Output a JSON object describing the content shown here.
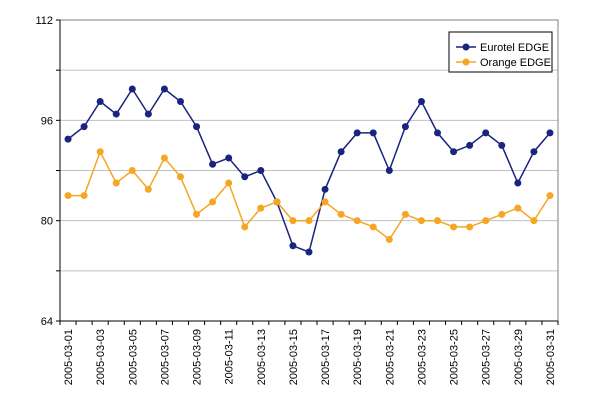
{
  "chart_data": {
    "type": "line",
    "title": "",
    "xlabel": "",
    "ylabel": "",
    "ylim": [
      64,
      112
    ],
    "yticks": [
      64,
      80,
      96,
      112
    ],
    "grid": true,
    "legend_position": "top-right",
    "x": [
      "2005-03-01",
      "2005-03-02",
      "2005-03-03",
      "2005-03-04",
      "2005-03-05",
      "2005-03-06",
      "2005-03-07",
      "2005-03-08",
      "2005-03-09",
      "2005-03-10",
      "2005-03-11",
      "2005-03-12",
      "2005-03-13",
      "2005-03-14",
      "2005-03-15",
      "2005-03-16",
      "2005-03-17",
      "2005-03-18",
      "2005-03-19",
      "2005-03-20",
      "2005-03-21",
      "2005-03-22",
      "2005-03-23",
      "2005-03-24",
      "2005-03-25",
      "2005-03-26",
      "2005-03-27",
      "2005-03-28",
      "2005-03-29",
      "2005-03-30",
      "2005-03-31"
    ],
    "x_tick_labels": [
      "2005-03-01",
      "2005-03-03",
      "2005-03-05",
      "2005-03-07",
      "2005-03-09",
      "2005-03-11",
      "2005-03-13",
      "2005-03-15",
      "2005-03-17",
      "2005-03-19",
      "2005-03-21",
      "2005-03-23",
      "2005-03-25",
      "2005-03-27",
      "2005-03-29",
      "2005-03-31"
    ],
    "series": [
      {
        "name": "Eurotel EDGE",
        "color": "#1a237e",
        "values": [
          93,
          95,
          99,
          97,
          101,
          97,
          101,
          99,
          95,
          89,
          90,
          87,
          88,
          83,
          76,
          75,
          85,
          91,
          94,
          94,
          88,
          95,
          99,
          94,
          91,
          92,
          94,
          92,
          86,
          91,
          94
        ]
      },
      {
        "name": "Orange EDGE",
        "color": "#f5a623",
        "values": [
          84,
          84,
          91,
          86,
          88,
          85,
          90,
          87,
          81,
          83,
          86,
          79,
          82,
          83,
          80,
          80,
          83,
          81,
          80,
          79,
          77,
          81,
          80,
          80,
          79,
          79,
          80,
          81,
          82,
          80,
          84
        ]
      }
    ]
  }
}
